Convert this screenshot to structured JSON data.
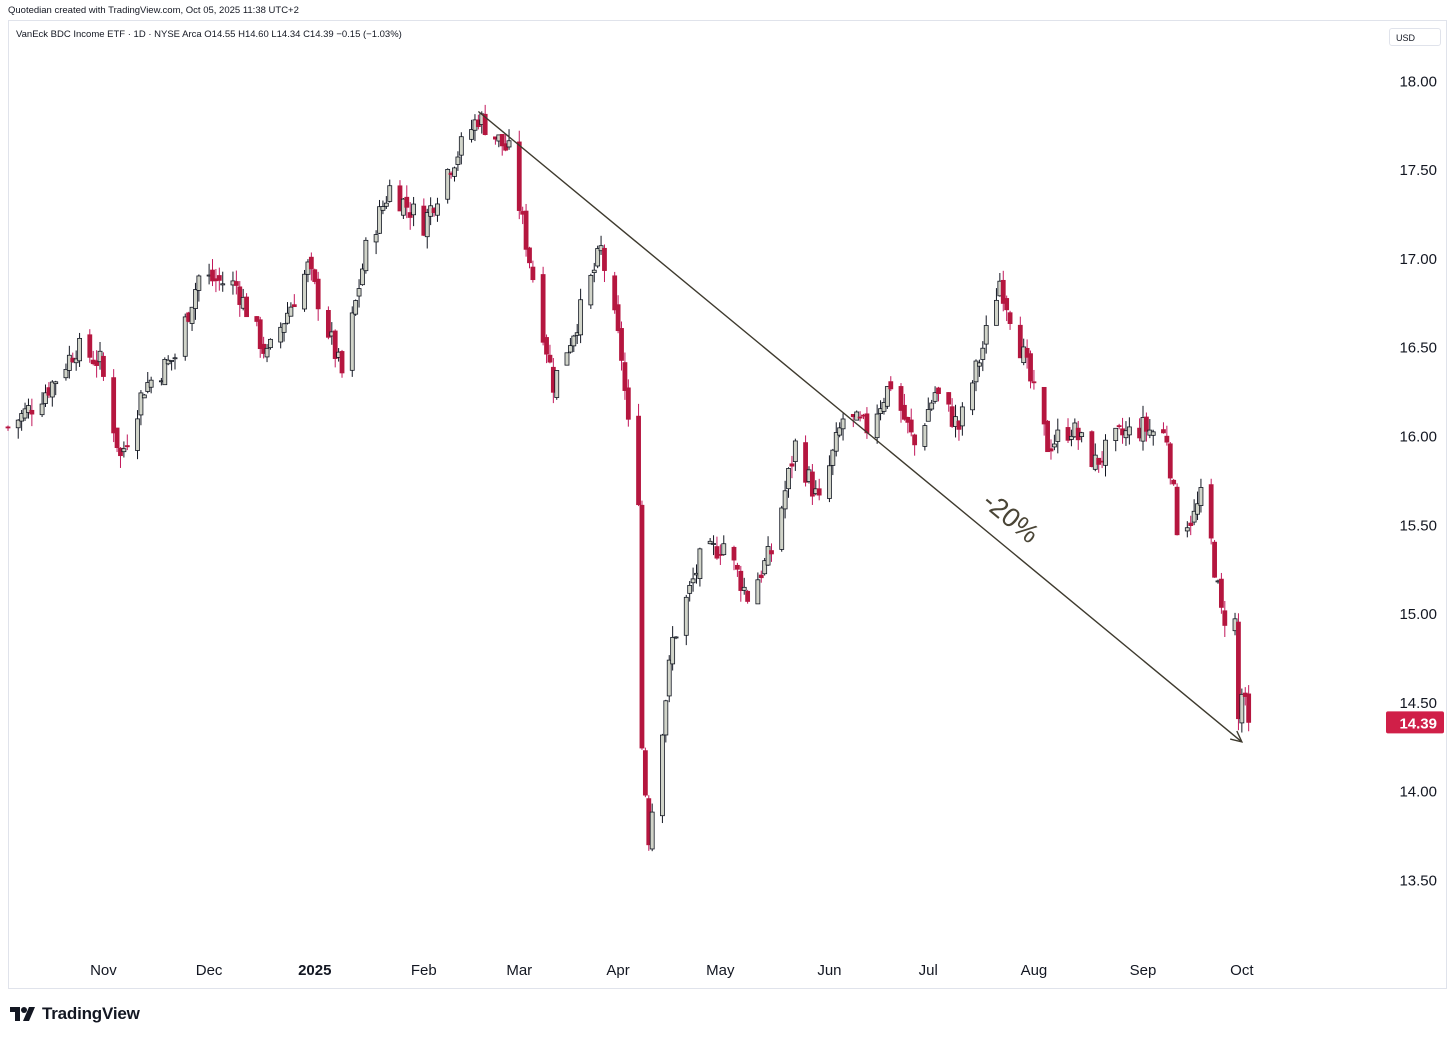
{
  "header": {
    "created_by": "Quotedian created with TradingView.com, Oct 05, 2025 11:38 UTC+2",
    "legend": "VanEck BDC Income ETF · 1D · NYSE Arca  O14.55  H14.60  L14.34  C14.39  −0.15 (−1.03%)",
    "currency": "USD"
  },
  "footer": {
    "brand": "TradingView"
  },
  "colors": {
    "up_body": "#d1d4c9",
    "up_stroke": "#131722",
    "down_body": "#b5163f",
    "down_wick": "#c2185b",
    "trendline": "#3e3a2e",
    "price_badge": "#d01f48"
  },
  "chart_data": {
    "type": "candlestick",
    "ylim": [
      13.08,
      18.12
    ],
    "y_ticks": [
      "18.00",
      "17.50",
      "17.00",
      "16.50",
      "16.00",
      "15.50",
      "15.00",
      "14.50",
      "14.00",
      "13.50"
    ],
    "x_labels": [
      {
        "label": "Nov",
        "date": "2024-11-01"
      },
      {
        "label": "Dec",
        "date": "2024-12-02"
      },
      {
        "label": "2025",
        "date": "2025-01-02",
        "bold": true
      },
      {
        "label": "Feb",
        "date": "2025-02-03"
      },
      {
        "label": "Mar",
        "date": "2025-03-03"
      },
      {
        "label": "Apr",
        "date": "2025-04-01"
      },
      {
        "label": "May",
        "date": "2025-05-01"
      },
      {
        "label": "Jun",
        "date": "2025-06-02"
      },
      {
        "label": "Jul",
        "date": "2025-07-01"
      },
      {
        "label": "Aug",
        "date": "2025-08-01"
      },
      {
        "label": "Sep",
        "date": "2025-09-02"
      },
      {
        "label": "Oct",
        "date": "2025-10-01"
      }
    ],
    "last_price": "14.39",
    "annotation": {
      "text": "-20%",
      "from": {
        "date": "2025-02-19",
        "value": 17.83
      },
      "to": {
        "date": "2025-10-01",
        "value": 14.28
      }
    },
    "x_start": "2024-10-04",
    "x_end": "2025-11-12",
    "anchors": [
      {
        "date": "2024-10-04",
        "c": 16.05
      },
      {
        "date": "2024-10-10",
        "c": 16.15
      },
      {
        "date": "2024-10-17",
        "c": 16.3
      },
      {
        "date": "2024-10-24",
        "c": 16.5
      },
      {
        "date": "2024-10-31",
        "c": 16.42
      },
      {
        "date": "2024-11-06",
        "c": 15.88
      },
      {
        "date": "2024-11-13",
        "c": 16.28
      },
      {
        "date": "2024-11-22",
        "c": 16.45
      },
      {
        "date": "2024-11-29",
        "c": 16.9
      },
      {
        "date": "2024-12-10",
        "c": 16.85
      },
      {
        "date": "2024-12-19",
        "c": 16.45
      },
      {
        "date": "2024-12-31",
        "c": 16.95
      },
      {
        "date": "2025-01-10",
        "c": 16.35
      },
      {
        "date": "2025-01-17",
        "c": 17.05
      },
      {
        "date": "2025-01-24",
        "c": 17.4
      },
      {
        "date": "2025-02-03",
        "c": 17.2
      },
      {
        "date": "2025-02-10",
        "c": 17.5
      },
      {
        "date": "2025-02-19",
        "c": 17.8
      },
      {
        "date": "2025-02-28",
        "c": 17.6
      },
      {
        "date": "2025-03-04",
        "c": 17.2
      },
      {
        "date": "2025-03-13",
        "c": 16.3
      },
      {
        "date": "2025-03-20",
        "c": 16.65
      },
      {
        "date": "2025-03-27",
        "c": 17.05
      },
      {
        "date": "2025-04-02",
        "c": 16.45
      },
      {
        "date": "2025-04-04",
        "c": 16.05
      },
      {
        "date": "2025-04-07",
        "c": 15.68
      },
      {
        "date": "2025-04-08",
        "c": 14.25
      },
      {
        "date": "2025-04-10",
        "c": 13.75
      },
      {
        "date": "2025-04-17",
        "c": 14.85
      },
      {
        "date": "2025-04-25",
        "c": 15.3
      },
      {
        "date": "2025-05-02",
        "c": 15.4
      },
      {
        "date": "2025-05-09",
        "c": 15.1
      },
      {
        "date": "2025-05-16",
        "c": 15.35
      },
      {
        "date": "2025-05-23",
        "c": 15.95
      },
      {
        "date": "2025-05-30",
        "c": 15.62
      },
      {
        "date": "2025-06-06",
        "c": 16.1
      },
      {
        "date": "2025-06-13",
        "c": 16.05
      },
      {
        "date": "2025-06-20",
        "c": 16.3
      },
      {
        "date": "2025-06-27",
        "c": 15.95
      },
      {
        "date": "2025-07-03",
        "c": 16.25
      },
      {
        "date": "2025-07-10",
        "c": 16.05
      },
      {
        "date": "2025-07-17",
        "c": 16.5
      },
      {
        "date": "2025-07-22",
        "c": 16.88
      },
      {
        "date": "2025-07-29",
        "c": 16.45
      },
      {
        "date": "2025-08-05",
        "c": 15.95
      },
      {
        "date": "2025-08-12",
        "c": 16.05
      },
      {
        "date": "2025-08-19",
        "c": 15.85
      },
      {
        "date": "2025-08-26",
        "c": 16.0
      },
      {
        "date": "2025-09-02",
        "c": 16.05
      },
      {
        "date": "2025-09-09",
        "c": 16.0
      },
      {
        "date": "2025-09-12",
        "c": 15.5
      },
      {
        "date": "2025-09-17",
        "c": 15.55
      },
      {
        "date": "2025-09-19",
        "c": 15.65
      },
      {
        "date": "2025-09-22",
        "c": 15.4
      },
      {
        "date": "2025-09-25",
        "c": 15.0
      },
      {
        "date": "2025-09-29",
        "c": 14.95
      },
      {
        "date": "2025-09-30",
        "c": 14.4
      },
      {
        "date": "2025-10-01",
        "c": 14.55
      },
      {
        "date": "2025-10-03",
        "c": 14.39
      }
    ]
  }
}
